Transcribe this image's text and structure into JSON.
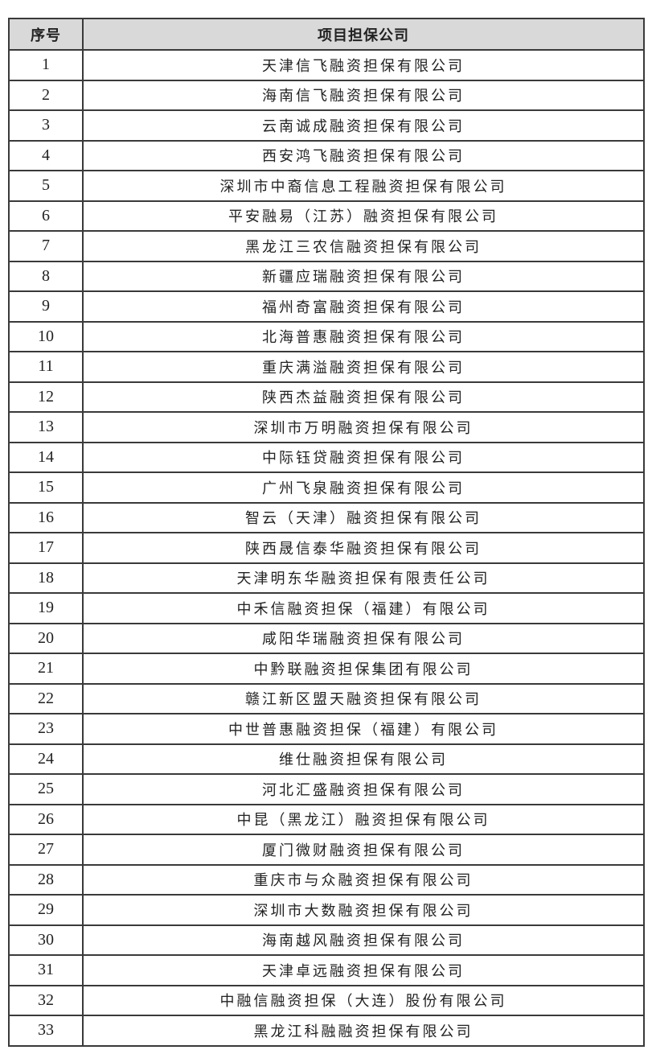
{
  "table": {
    "headers": [
      "序号",
      "项目担保公司"
    ],
    "rows": [
      "天津信飞融资担保有限公司",
      "海南信飞融资担保有限公司",
      "云南诚成融资担保有限公司",
      "西安鸿飞融资担保有限公司",
      "深圳市中裔信息工程融资担保有限公司",
      "平安融易（江苏）融资担保有限公司",
      "黑龙江三农信融资担保有限公司",
      "新疆应瑞融资担保有限公司",
      "福州奇富融资担保有限公司",
      "北海普惠融资担保有限公司",
      "重庆满溢融资担保有限公司",
      "陕西杰益融资担保有限公司",
      "深圳市万明融资担保有限公司",
      "中际钰贷融资担保有限公司",
      "广州飞泉融资担保有限公司",
      "智云（天津）融资担保有限公司",
      "陕西晟信泰华融资担保有限公司",
      "天津明东华融资担保有限责任公司",
      "中禾信融资担保（福建）有限公司",
      "咸阳华瑞融资担保有限公司",
      "中黔联融资担保集团有限公司",
      "赣江新区盟天融资担保有限公司",
      "中世普惠融资担保（福建）有限公司",
      "维仕融资担保有限公司",
      "河北汇盛融资担保有限公司",
      "中昆（黑龙江）融资担保有限公司",
      "厦门微财融资担保有限公司",
      "重庆市与众融资担保有限公司",
      "深圳市大数融资担保有限公司",
      "海南越风融资担保有限公司",
      "天津卓远融资担保有限公司",
      "中融信融资担保（大连）股份有限公司",
      "黑龙江科融融资担保有限公司"
    ],
    "header_bg": "#d9d9d9"
  }
}
